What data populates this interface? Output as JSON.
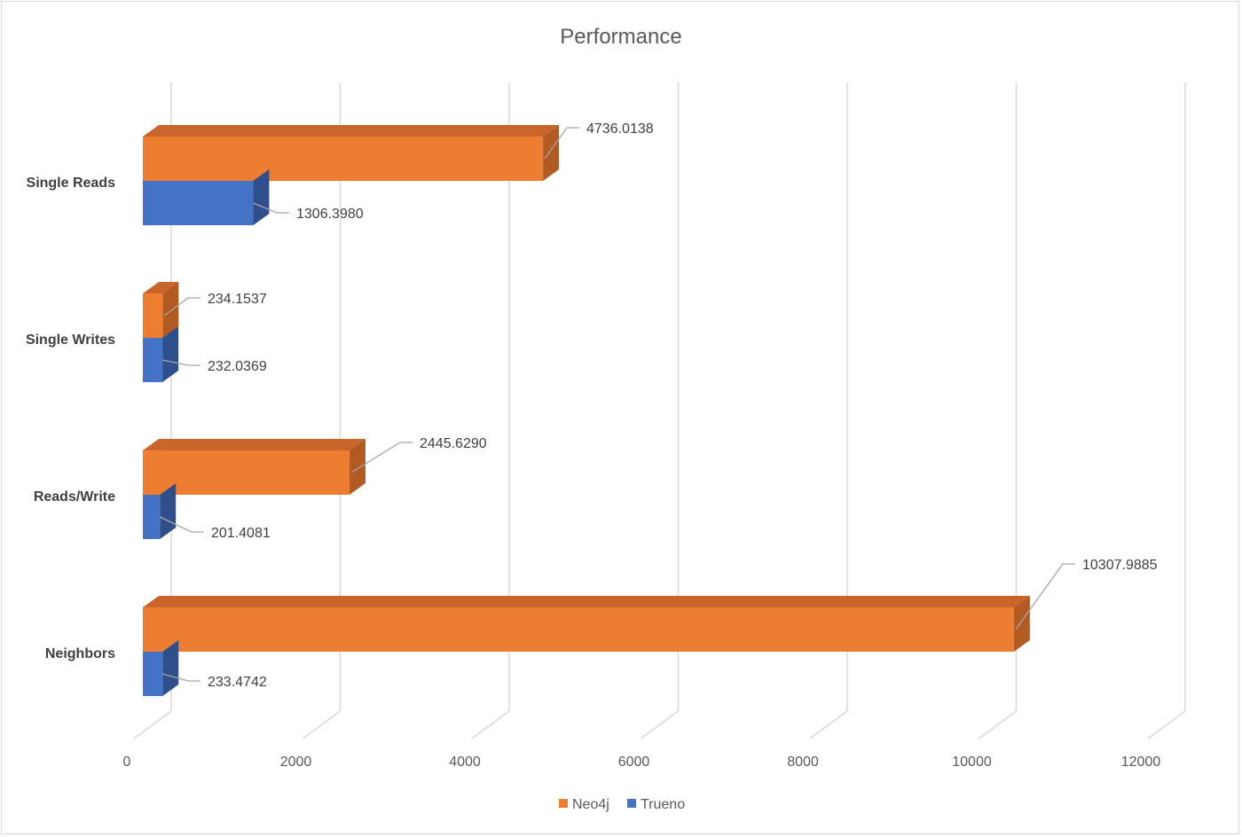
{
  "chart_data": {
    "type": "bar",
    "orientation": "horizontal",
    "style": "3d-clustered",
    "title": "Performance",
    "categories": [
      "Single Reads",
      "Single Writes",
      "Reads/Write",
      "Neighbors"
    ],
    "series": [
      {
        "name": "Neo4j",
        "values": [
          4736.0138,
          234.1537,
          2445.629,
          10307.9885
        ],
        "labels": [
          "4736.0138",
          "234.1537",
          "2445.6290",
          "10307.9885"
        ],
        "color": "#ED7D31",
        "top_color": "#C9652A",
        "side_color": "#B15A22"
      },
      {
        "name": "Trueno",
        "values": [
          1306.398,
          232.0369,
          201.4081,
          233.4742
        ],
        "labels": [
          "1306.3980",
          "232.0369",
          "201.4081",
          "233.4742"
        ],
        "color": "#4472C4",
        "top_color": "#3A62A8",
        "side_color": "#2F4F8C"
      }
    ],
    "xlim": [
      0,
      12000
    ],
    "xticks": [
      0,
      2000,
      4000,
      6000,
      8000,
      10000,
      12000
    ],
    "xtick_labels": [
      "0",
      "2000",
      "4000",
      "6000",
      "8000",
      "10000",
      "12000"
    ],
    "grid": true,
    "legend": "bottom-center"
  }
}
